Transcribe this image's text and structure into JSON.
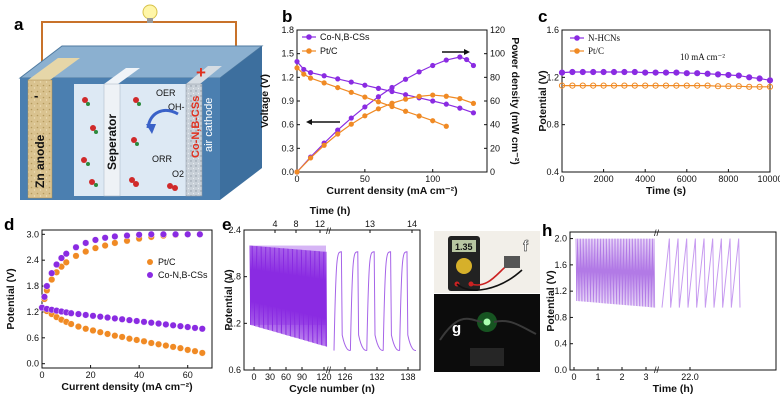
{
  "panels": {
    "a": {
      "letter": "a",
      "labels": {
        "anode": "Zn anode",
        "separator": "Seperator",
        "cathode_top": "Co-N,B-CSs",
        "cathode_bottom": "air cathode",
        "oer": "OER",
        "oh": "OH-",
        "orr": "ORR",
        "o2": "O2",
        "minus": "-",
        "plus": "+"
      }
    },
    "b": {
      "letter": "b"
    },
    "c": {
      "letter": "c"
    },
    "d": {
      "letter": "d"
    },
    "e": {
      "letter": "e"
    },
    "f": {
      "letter": "f",
      "display_reading": "1.35"
    },
    "g": {
      "letter": "g"
    },
    "h": {
      "letter": "h"
    }
  },
  "colors": {
    "purple": "#8a2be2",
    "orange": "#f08a24",
    "purple_light": "#c79bf0"
  },
  "chart_data": [
    {
      "id": "b",
      "type": "line",
      "xlabel": "Current density (mA cm⁻²)",
      "ylabel": "Voltage (V)",
      "y2label": "Power density (mW cm⁻²)",
      "xlim": [
        0,
        140
      ],
      "ylim": [
        0,
        1.8
      ],
      "y2lim": [
        0,
        120
      ],
      "xticks": [
        0,
        50,
        100
      ],
      "yticks": [
        0.0,
        0.3,
        0.6,
        0.9,
        1.2,
        1.5,
        1.8
      ],
      "y2ticks": [
        0,
        20,
        40,
        60,
        80,
        100,
        120
      ],
      "legend": [
        "Co-N,B-CSs",
        "Pt/C"
      ],
      "series": [
        {
          "name": "Co-N,B-CSs",
          "axis": "left",
          "color": "#8a2be2",
          "x": [
            0,
            5,
            10,
            20,
            30,
            40,
            50,
            60,
            70,
            80,
            90,
            100,
            110,
            120,
            130
          ],
          "y": [
            1.4,
            1.3,
            1.26,
            1.22,
            1.18,
            1.14,
            1.1,
            1.06,
            1.02,
            0.98,
            0.94,
            0.9,
            0.86,
            0.81,
            0.75
          ]
        },
        {
          "name": "Co-N,B-CSs",
          "axis": "right",
          "color": "#8a2be2",
          "x": [
            0,
            10,
            20,
            30,
            40,
            50,
            60,
            70,
            80,
            90,
            100,
            110,
            120,
            125,
            130
          ],
          "y": [
            0,
            12.6,
            24.4,
            35.4,
            45.6,
            55,
            63.6,
            71.4,
            78.4,
            84.6,
            90,
            94.6,
            97.2,
            95,
            90
          ]
        },
        {
          "name": "Pt/C",
          "axis": "left",
          "color": "#f08a24",
          "x": [
            0,
            5,
            10,
            20,
            30,
            40,
            50,
            60,
            70,
            80,
            90,
            100,
            110
          ],
          "y": [
            1.32,
            1.24,
            1.19,
            1.13,
            1.07,
            1.01,
            0.95,
            0.89,
            0.83,
            0.77,
            0.71,
            0.65,
            0.58
          ]
        },
        {
          "name": "Pt/C",
          "axis": "right",
          "color": "#f08a24",
          "x": [
            0,
            10,
            20,
            30,
            40,
            50,
            60,
            70,
            80,
            90,
            100,
            110,
            120,
            130
          ],
          "y": [
            0,
            11.9,
            22.6,
            32.1,
            40.4,
            47.5,
            53.4,
            58.1,
            61.6,
            63.9,
            65,
            64,
            62,
            58
          ]
        }
      ]
    },
    {
      "id": "c",
      "type": "line",
      "xlabel": "Time (s)",
      "ylabel": "Potential (V)",
      "annotation": "10 mA cm⁻²",
      "xlim": [
        0,
        10000
      ],
      "ylim": [
        0.4,
        1.6
      ],
      "xticks": [
        0,
        2000,
        4000,
        6000,
        8000,
        10000
      ],
      "yticks": [
        0.4,
        0.8,
        1.2,
        1.6
      ],
      "legend": [
        "N-HCNs",
        "Pt/C"
      ],
      "series": [
        {
          "name": "N-HCNs",
          "color": "#8a2be2",
          "x": [
            0,
            500,
            1000,
            1500,
            2000,
            2500,
            3000,
            3500,
            4000,
            4500,
            5000,
            5500,
            6000,
            6500,
            7000,
            7500,
            8000,
            8500,
            9000,
            9500,
            10000
          ],
          "y": [
            1.24,
            1.245,
            1.245,
            1.245,
            1.245,
            1.245,
            1.245,
            1.245,
            1.24,
            1.24,
            1.24,
            1.24,
            1.235,
            1.235,
            1.23,
            1.225,
            1.22,
            1.215,
            1.2,
            1.19,
            1.175
          ]
        },
        {
          "name": "Pt/C",
          "color": "#f08a24",
          "x": [
            0,
            500,
            1000,
            1500,
            2000,
            2500,
            3000,
            3500,
            4000,
            4500,
            5000,
            5500,
            6000,
            6500,
            7000,
            7500,
            8000,
            8500,
            9000,
            9500,
            10000
          ],
          "y": [
            1.13,
            1.13,
            1.13,
            1.13,
            1.13,
            1.13,
            1.13,
            1.13,
            1.13,
            1.13,
            1.13,
            1.13,
            1.13,
            1.13,
            1.13,
            1.125,
            1.125,
            1.125,
            1.12,
            1.12,
            1.12
          ]
        }
      ]
    },
    {
      "id": "d",
      "type": "scatter",
      "xlabel": "Current density (mA cm⁻²)",
      "ylabel": "Potential (V)",
      "xlim": [
        0,
        70
      ],
      "ylim": [
        -0.1,
        3.1
      ],
      "xticks": [
        0,
        20,
        40,
        60
      ],
      "yticks": [
        0.0,
        0.6,
        1.2,
        1.8,
        2.4,
        3.0
      ],
      "legend": [
        "Pt/C",
        "Co-N,B-CSs"
      ],
      "series": [
        {
          "name": "Pt/C",
          "color": "#f08a24",
          "branch": "charge",
          "x": [
            0,
            1,
            2,
            4,
            6,
            8,
            10,
            14,
            18,
            22,
            26,
            30,
            35,
            40,
            45,
            50,
            55,
            60,
            65
          ],
          "y": [
            1.3,
            1.5,
            1.7,
            1.95,
            2.12,
            2.25,
            2.35,
            2.5,
            2.6,
            2.68,
            2.74,
            2.8,
            2.85,
            2.9,
            2.94,
            2.97,
            2.99,
            3.0,
            3.0
          ]
        },
        {
          "name": "Co-N,B-CSs",
          "color": "#8a2be2",
          "branch": "charge",
          "x": [
            0,
            1,
            2,
            4,
            6,
            8,
            10,
            14,
            18,
            22,
            26,
            30,
            35,
            40,
            45,
            50,
            55,
            60,
            65
          ],
          "y": [
            1.3,
            1.55,
            1.8,
            2.1,
            2.3,
            2.45,
            2.55,
            2.7,
            2.8,
            2.87,
            2.92,
            2.95,
            2.97,
            2.99,
            3.0,
            3.0,
            3.0,
            3.0,
            3.0
          ]
        },
        {
          "name": "Pt/C",
          "color": "#f08a24",
          "branch": "discharge",
          "x": [
            0,
            2,
            4,
            6,
            8,
            10,
            12,
            15,
            18,
            21,
            24,
            27,
            30,
            33,
            36,
            39,
            42,
            45,
            48,
            51,
            54,
            57,
            60,
            63,
            66
          ],
          "y": [
            1.3,
            1.22,
            1.15,
            1.08,
            1.02,
            0.97,
            0.92,
            0.86,
            0.81,
            0.77,
            0.73,
            0.69,
            0.65,
            0.62,
            0.58,
            0.55,
            0.52,
            0.48,
            0.45,
            0.42,
            0.39,
            0.36,
            0.32,
            0.29,
            0.25
          ]
        },
        {
          "name": "Co-N,B-CSs",
          "color": "#8a2be2",
          "branch": "discharge",
          "x": [
            0,
            2,
            4,
            6,
            8,
            10,
            12,
            15,
            18,
            21,
            24,
            27,
            30,
            33,
            36,
            39,
            42,
            45,
            48,
            51,
            54,
            57,
            60,
            63,
            66
          ],
          "y": [
            1.3,
            1.27,
            1.25,
            1.23,
            1.21,
            1.19,
            1.17,
            1.15,
            1.13,
            1.11,
            1.09,
            1.07,
            1.05,
            1.03,
            1.01,
            0.99,
            0.97,
            0.95,
            0.93,
            0.91,
            0.89,
            0.87,
            0.85,
            0.83,
            0.81
          ]
        }
      ]
    },
    {
      "id": "e",
      "type": "line",
      "xlabel": "Cycle number (n)",
      "x2label": "Time (h)",
      "ylabel": "Potential (V)",
      "xticks": [
        "0",
        "30",
        "60",
        "90",
        "120",
        "126",
        "132",
        "138"
      ],
      "x2ticks": [
        "4",
        "8",
        "12",
        "13",
        "14"
      ],
      "yticks": [
        0.6,
        1.2,
        1.8,
        2.4
      ],
      "ylim": [
        0.6,
        2.4
      ],
      "segment1": {
        "cycles": [
          0,
          120
        ],
        "upper": [
          2.2,
          2.12
        ],
        "lower": [
          1.18,
          0.9
        ]
      },
      "segment2": {
        "cycles": [
          120,
          138
        ],
        "upper": 2.12,
        "lower": 0.85,
        "cycles_shown": 5
      }
    },
    {
      "id": "h",
      "type": "line",
      "xlabel": "Time (h)",
      "ylabel": "Potential (V)",
      "xticks": [
        "0",
        "1",
        "2",
        "3",
        "22.0"
      ],
      "yticks": [
        0.0,
        0.4,
        0.8,
        1.2,
        1.6,
        2.0
      ],
      "ylim": [
        0,
        2.1
      ],
      "segment1": {
        "time": [
          0,
          2.9
        ],
        "upper": 2.0,
        "lower": [
          1.05,
          0.95
        ]
      },
      "segment2": {
        "upper": 2.0,
        "lower": 0.95,
        "cycles_shown": 9
      }
    }
  ]
}
